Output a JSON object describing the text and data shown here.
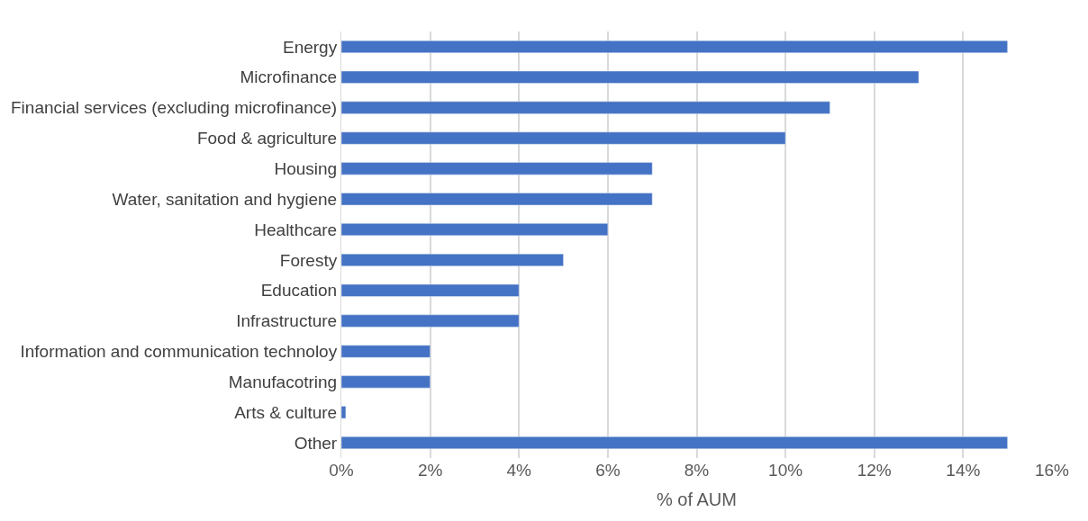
{
  "chart_data": {
    "type": "bar",
    "orientation": "horizontal",
    "xlabel": "% of AUM",
    "categories": [
      "Energy",
      "Microfinance",
      "Financial services (excluding microfinance)",
      "Food & agriculture",
      "Housing",
      "Water, sanitation and hygiene",
      "Healthcare",
      "Foresty",
      "Education",
      "Infrastructure",
      "Information and communication technoloy",
      "Manufacotring",
      "Arts & culture",
      "Other"
    ],
    "values": [
      15,
      13,
      11,
      10,
      7,
      7,
      6,
      5,
      4,
      4,
      2,
      2,
      0.1,
      15
    ],
    "color": "#4472c4",
    "xlim": [
      0,
      16
    ],
    "xticks": [
      {
        "value": 0,
        "label": "0%"
      },
      {
        "value": 2,
        "label": "2%"
      },
      {
        "value": 4,
        "label": "4%"
      },
      {
        "value": 6,
        "label": "6%"
      },
      {
        "value": 8,
        "label": "8%"
      },
      {
        "value": 10,
        "label": "10%"
      },
      {
        "value": 12,
        "label": "12%"
      },
      {
        "value": 14,
        "label": "14%"
      },
      {
        "value": 16,
        "label": "16%"
      }
    ],
    "grid": "x"
  }
}
